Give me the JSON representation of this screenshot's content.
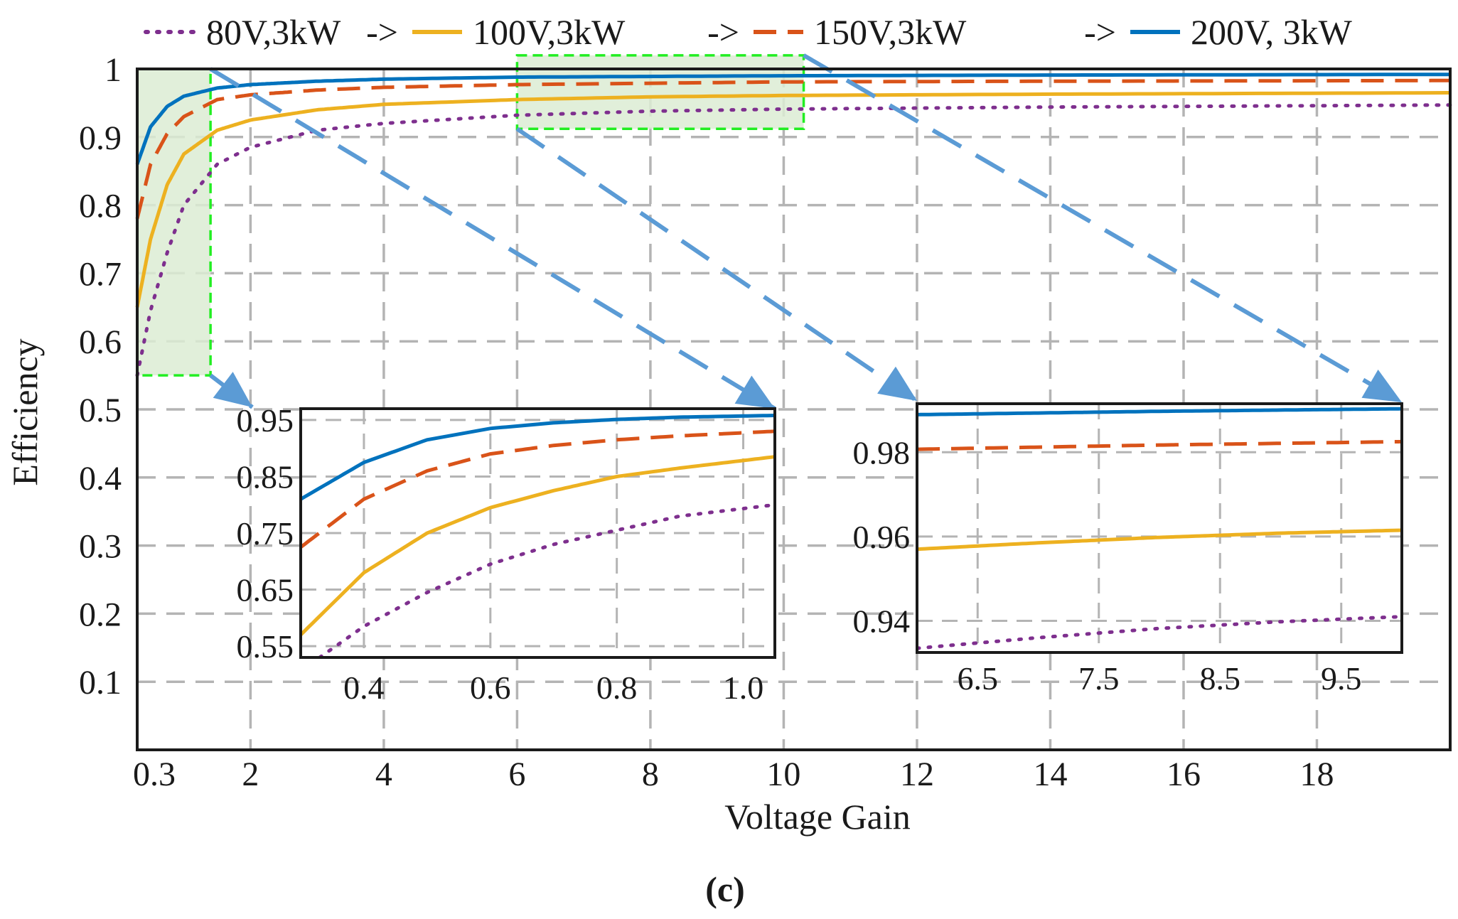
{
  "figure_label": "(c)",
  "chart_data": [
    {
      "id": "main",
      "type": "line",
      "title": "",
      "xlabel": "Voltage Gain",
      "ylabel": "Efficiency",
      "xlim": [
        0.3,
        20
      ],
      "ylim": [
        0,
        1
      ],
      "grid": true,
      "legend_position": "top",
      "xticks": [
        {
          "v": 0.3,
          "label": "0.3"
        },
        {
          "v": 2,
          "label": "2"
        },
        {
          "v": 4,
          "label": "4"
        },
        {
          "v": 6,
          "label": "6"
        },
        {
          "v": 8,
          "label": "8"
        },
        {
          "v": 10,
          "label": "10"
        },
        {
          "v": 12,
          "label": "12"
        },
        {
          "v": 14,
          "label": "14"
        },
        {
          "v": 16,
          "label": "16"
        },
        {
          "v": 18,
          "label": "18"
        }
      ],
      "yticks": [
        {
          "v": 0.1,
          "label": "0.1"
        },
        {
          "v": 0.2,
          "label": "0.2"
        },
        {
          "v": 0.3,
          "label": "0.3"
        },
        {
          "v": 0.4,
          "label": "0.4"
        },
        {
          "v": 0.5,
          "label": "0.5"
        },
        {
          "v": 0.6,
          "label": "0.6"
        },
        {
          "v": 0.7,
          "label": "0.7"
        },
        {
          "v": 0.8,
          "label": "0.8"
        },
        {
          "v": 0.9,
          "label": "0.9"
        },
        {
          "v": 1.0,
          "label": "1"
        }
      ],
      "series": [
        {
          "name": "80V,3kW",
          "color": "#7e2f8e",
          "dash": "dot",
          "x": [
            0.3,
            0.5,
            0.75,
            1,
            1.5,
            2,
            3,
            4,
            6,
            8,
            10,
            14,
            20
          ],
          "y": [
            0.55,
            0.645,
            0.73,
            0.8,
            0.86,
            0.885,
            0.91,
            0.92,
            0.932,
            0.938,
            0.941,
            0.944,
            0.947
          ]
        },
        {
          "name": "100V,3kW",
          "color": "#edb120",
          "dash": "solid",
          "x": [
            0.3,
            0.5,
            0.75,
            1,
            1.5,
            2,
            3,
            4,
            6,
            8,
            10,
            14,
            20
          ],
          "y": [
            0.65,
            0.75,
            0.83,
            0.875,
            0.91,
            0.925,
            0.94,
            0.948,
            0.955,
            0.959,
            0.961,
            0.963,
            0.965
          ]
        },
        {
          "name": "150V,3kW",
          "color": "#d95319",
          "dash": "dash",
          "x": [
            0.3,
            0.5,
            0.75,
            1,
            1.5,
            2,
            3,
            4,
            6,
            8,
            10,
            14,
            20
          ],
          "y": [
            0.78,
            0.86,
            0.905,
            0.93,
            0.955,
            0.962,
            0.969,
            0.973,
            0.977,
            0.979,
            0.981,
            0.982,
            0.983
          ]
        },
        {
          "name": "200V, 3kW",
          "color": "#0072bd",
          "dash": "solid",
          "x": [
            0.3,
            0.5,
            0.75,
            1,
            1.5,
            2,
            3,
            4,
            6,
            8,
            10,
            14,
            20
          ],
          "y": [
            0.86,
            0.915,
            0.945,
            0.96,
            0.972,
            0.977,
            0.982,
            0.985,
            0.988,
            0.989,
            0.99,
            0.991,
            0.992
          ]
        }
      ],
      "legend_arrows": [
        "->",
        "->",
        "->"
      ]
    },
    {
      "id": "inset-low-gain",
      "type": "line",
      "xlim": [
        0.3,
        1.05
      ],
      "ylim": [
        0.53,
        0.97
      ],
      "grid": true,
      "xticks": [
        {
          "v": 0.4,
          "label": "0.4"
        },
        {
          "v": 0.6,
          "label": "0.6"
        },
        {
          "v": 0.8,
          "label": "0.8"
        },
        {
          "v": 1.0,
          "label": "1.0"
        }
      ],
      "yticks": [
        {
          "v": 0.55,
          "label": "0.55"
        },
        {
          "v": 0.65,
          "label": "0.65"
        },
        {
          "v": 0.75,
          "label": "0.75"
        },
        {
          "v": 0.85,
          "label": "0.85"
        },
        {
          "v": 0.95,
          "label": "0.95"
        }
      ],
      "series": [
        {
          "name": "80V,3kW",
          "color": "#7e2f8e",
          "dash": "dot",
          "x": [
            0.33,
            0.4,
            0.5,
            0.6,
            0.7,
            0.8,
            0.9,
            1.05
          ],
          "y": [
            0.53,
            0.585,
            0.645,
            0.695,
            0.73,
            0.755,
            0.78,
            0.8
          ]
        },
        {
          "name": "100V,3kW",
          "color": "#edb120",
          "dash": "solid",
          "x": [
            0.3,
            0.4,
            0.5,
            0.6,
            0.7,
            0.8,
            0.9,
            1.05
          ],
          "y": [
            0.57,
            0.68,
            0.75,
            0.795,
            0.825,
            0.85,
            0.865,
            0.885
          ]
        },
        {
          "name": "150V,3kW",
          "color": "#d95319",
          "dash": "dash",
          "x": [
            0.3,
            0.4,
            0.5,
            0.6,
            0.7,
            0.8,
            0.9,
            1.05
          ],
          "y": [
            0.725,
            0.81,
            0.86,
            0.89,
            0.905,
            0.915,
            0.922,
            0.93
          ]
        },
        {
          "name": "200V, 3kW",
          "color": "#0072bd",
          "dash": "solid",
          "x": [
            0.3,
            0.4,
            0.5,
            0.6,
            0.7,
            0.8,
            0.9,
            1.05
          ],
          "y": [
            0.81,
            0.875,
            0.915,
            0.935,
            0.945,
            0.951,
            0.955,
            0.958
          ]
        }
      ]
    },
    {
      "id": "inset-mid-gain",
      "type": "line",
      "xlim": [
        6.0,
        10.0
      ],
      "ylim": [
        0.9325,
        0.9915
      ],
      "grid": true,
      "xticks": [
        {
          "v": 6.5,
          "label": "6.5"
        },
        {
          "v": 7.5,
          "label": "7.5"
        },
        {
          "v": 8.5,
          "label": "8.5"
        },
        {
          "v": 9.5,
          "label": "9.5"
        }
      ],
      "yticks": [
        {
          "v": 0.94,
          "label": "0.94"
        },
        {
          "v": 0.96,
          "label": "0.96"
        },
        {
          "v": 0.98,
          "label": "0.98"
        }
      ],
      "series": [
        {
          "name": "80V,3kW",
          "color": "#7e2f8e",
          "dash": "dot",
          "x": [
            6.0,
            7.0,
            8.0,
            9.0,
            10.0
          ],
          "y": [
            0.9335,
            0.936,
            0.9382,
            0.9398,
            0.941
          ]
        },
        {
          "name": "100V,3kW",
          "color": "#edb120",
          "dash": "solid",
          "x": [
            6.0,
            7.0,
            8.0,
            9.0,
            10.0
          ],
          "y": [
            0.957,
            0.9585,
            0.9598,
            0.9608,
            0.9615
          ]
        },
        {
          "name": "150V,3kW",
          "color": "#d95319",
          "dash": "dash",
          "x": [
            6.0,
            7.0,
            8.0,
            9.0,
            10.0
          ],
          "y": [
            0.9807,
            0.9812,
            0.9817,
            0.9821,
            0.9825
          ]
        },
        {
          "name": "200V, 3kW",
          "color": "#0072bd",
          "dash": "solid",
          "x": [
            6.0,
            7.0,
            8.0,
            9.0,
            10.0
          ],
          "y": [
            0.9889,
            0.9893,
            0.9897,
            0.99,
            0.9903
          ]
        }
      ]
    }
  ]
}
